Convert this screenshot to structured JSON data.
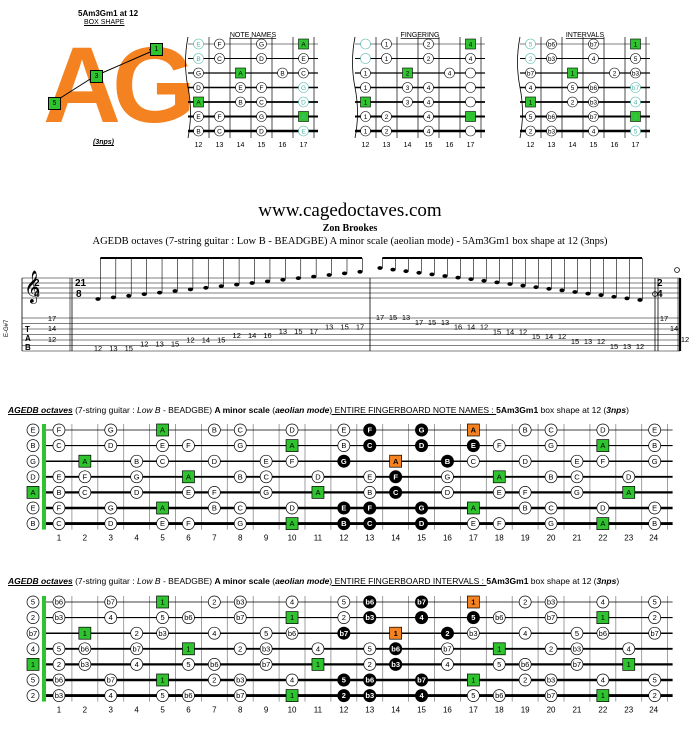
{
  "header": {
    "shape_title": "5Am3Gm1 at 12",
    "shape_subtitle": "BOX SHAPE",
    "logo_letters": "AG",
    "nps": "(3nps)",
    "logo_markers": [
      "1",
      "3",
      "5"
    ],
    "accent_orange": "#f58220",
    "accent_green": "#2fc42f"
  },
  "mini": {
    "fret_numbers": [
      "12",
      "13",
      "14",
      "15",
      "16",
      "17"
    ],
    "note_names": {
      "title": "NOTE NAMES",
      "rows": [
        [
          "E",
          "F",
          "",
          "G",
          "",
          "A"
        ],
        [
          "B",
          "C",
          "",
          "D",
          "",
          "E"
        ],
        [
          "G",
          "",
          "A",
          "",
          "B",
          "C"
        ],
        [
          "D",
          "",
          "E",
          "F",
          "",
          "G"
        ],
        [
          "A",
          "",
          "B",
          "C",
          "",
          "D"
        ],
        [
          "E",
          "F",
          "",
          "G",
          "",
          "A"
        ],
        [
          "B",
          "C",
          "",
          "D",
          "",
          "E"
        ]
      ]
    },
    "fingering": {
      "title": "FINGERING",
      "rows": [
        [
          "",
          "1",
          "",
          "2",
          "",
          "4"
        ],
        [
          "",
          "1",
          "",
          "2",
          "",
          "4"
        ],
        [
          "1",
          "",
          "2",
          "",
          "4",
          ""
        ],
        [
          "1",
          "",
          "3",
          "4",
          "",
          ""
        ],
        [
          "1",
          "",
          "3",
          "4",
          "",
          ""
        ],
        [
          "1",
          "2",
          "",
          "4",
          "",
          ""
        ],
        [
          "1",
          "2",
          "",
          "4",
          "",
          ""
        ]
      ]
    },
    "intervals": {
      "title": "INTERVALS",
      "rows": [
        [
          "5",
          "b6",
          "",
          "b7",
          "",
          "1"
        ],
        [
          "2",
          "b3",
          "",
          "4",
          "",
          "5"
        ],
        [
          "b7",
          "",
          "1",
          "",
          "2",
          "b3"
        ],
        [
          "4",
          "",
          "5",
          "b6",
          "",
          "b7"
        ],
        [
          "1",
          "",
          "2",
          "b3",
          "",
          "4"
        ],
        [
          "5",
          "b6",
          "",
          "b7",
          "",
          "1"
        ],
        [
          "2",
          "b3",
          "",
          "4",
          "",
          "5"
        ]
      ]
    }
  },
  "site": {
    "url": "www.cagedoctaves.com",
    "author": "Zon Brookes",
    "description": "AGEDB octaves (7-string guitar : Low B - BEADGBE) A minor scale (aeolian mode) - 5Am3Gm1 box shape at 12 (3nps)"
  },
  "tab": {
    "tuning": "E-G#7",
    "time_sig_top": "2",
    "time_sig_bottom": "4",
    "time_sig2_top": "21",
    "time_sig2_bottom": "8",
    "chord_frets": [
      "17",
      "14",
      "12"
    ],
    "asc_row": [
      "12",
      "13",
      "15",
      "12",
      "13",
      "15",
      "12",
      "14",
      "15",
      "12",
      "14",
      "16",
      "13",
      "15",
      "17",
      "13",
      "15",
      "17"
    ],
    "desc_row": [
      "17",
      "15",
      "13",
      "17",
      "15",
      "13",
      "16",
      "14",
      "12",
      "15",
      "14",
      "12",
      "15",
      "14",
      "12",
      "15",
      "13",
      "12",
      "15",
      "13",
      "12"
    ],
    "end_frets": [
      "17",
      "14",
      "12"
    ]
  },
  "board1": {
    "t1": "AGEDB octaves",
    "t2": " (7-string guitar : ",
    "t3": "Low B",
    "t4": " - BEADGBE) ",
    "t5": "A minor scale",
    "t6": " (",
    "t7": "aeolian mode",
    "t8": ") ENTIRE FINGERBOARD NOTE NAMES : ",
    "t9": "5Am3Gm1",
    "t10": " box shape at 12 (",
    "t11": "3nps",
    "t12": ")",
    "open": [
      "E",
      "B",
      "G",
      "D",
      "A",
      "E",
      "B"
    ],
    "rows": [
      [
        "F",
        "",
        "G",
        "",
        "A",
        "",
        "B",
        "C",
        "",
        "D",
        "",
        "E",
        "F",
        "",
        "G",
        "",
        "A",
        "",
        "B",
        "C",
        "",
        "D",
        "",
        "E"
      ],
      [
        "C",
        "",
        "D",
        "",
        "E",
        "F",
        "",
        "G",
        "",
        "A",
        "",
        "B",
        "C",
        "",
        "D",
        "",
        "E",
        "F",
        "",
        "G",
        "",
        "A",
        "",
        "B"
      ],
      [
        "",
        "A",
        "",
        "B",
        "C",
        "",
        "D",
        "",
        "E",
        "F",
        "",
        "G",
        "",
        "A",
        "",
        "B",
        "C",
        "",
        "D",
        "",
        "E",
        "F",
        "",
        "G"
      ],
      [
        "E",
        "F",
        "",
        "G",
        "",
        "A",
        "",
        "B",
        "C",
        "",
        "D",
        "",
        "E",
        "F",
        "",
        "G",
        "",
        "A",
        "",
        "B",
        "C",
        "",
        "D",
        ""
      ],
      [
        "B",
        "C",
        "",
        "D",
        "",
        "E",
        "F",
        "",
        "G",
        "",
        "A",
        "",
        "B",
        "C",
        "",
        "D",
        "",
        "E",
        "F",
        "",
        "G",
        "",
        "A",
        ""
      ],
      [
        "F",
        "",
        "G",
        "",
        "A",
        "",
        "B",
        "C",
        "",
        "D",
        "",
        "E",
        "F",
        "",
        "G",
        "",
        "A",
        "",
        "B",
        "C",
        "",
        "D",
        "",
        "E"
      ],
      [
        "C",
        "",
        "D",
        "",
        "E",
        "F",
        "",
        "G",
        "",
        "A",
        "",
        "B",
        "C",
        "",
        "D",
        "",
        "E",
        "F",
        "",
        "G",
        "",
        "A",
        "",
        "B"
      ]
    ],
    "fret_numbers": [
      "1",
      "2",
      "3",
      "4",
      "5",
      "6",
      "7",
      "8",
      "9",
      "10",
      "11",
      "12",
      "13",
      "14",
      "15",
      "16",
      "17",
      "18",
      "19",
      "20",
      "21",
      "22",
      "23",
      "24"
    ]
  },
  "board2": {
    "t1": "AGEDB octaves",
    "t2": " (7-string guitar : ",
    "t3": "Low B",
    "t4": " - BEADGBE) ",
    "t5": "A minor scale",
    "t6": " (",
    "t7": "aeolian mode",
    "t8": ") ENTIRE FINGERBOARD INTERVALS : ",
    "t9": "5Am3Gm1",
    "t10": " box shape at 12 (",
    "t11": "3nps",
    "t12": ")",
    "open": [
      "5",
      "2",
      "b7",
      "4",
      "1",
      "5",
      "2"
    ],
    "rows": [
      [
        "b6",
        "",
        "b7",
        "",
        "1",
        "",
        "2",
        "b3",
        "",
        "4",
        "",
        "5",
        "b6",
        "",
        "b7",
        "",
        "1",
        "",
        "2",
        "b3",
        "",
        "4",
        "",
        "5"
      ],
      [
        "b3",
        "",
        "4",
        "",
        "5",
        "b6",
        "",
        "b7",
        "",
        "1",
        "",
        "2",
        "b3",
        "",
        "4",
        "",
        "5",
        "b6",
        "",
        "b7",
        "",
        "1",
        "",
        "2"
      ],
      [
        "",
        "1",
        "",
        "2",
        "b3",
        "",
        "4",
        "",
        "5",
        "b6",
        "",
        "b7",
        "",
        "1",
        "",
        "2",
        "b3",
        "",
        "4",
        "",
        "5",
        "b6",
        "",
        "b7"
      ],
      [
        "5",
        "b6",
        "",
        "b7",
        "",
        "1",
        "",
        "2",
        "b3",
        "",
        "4",
        "",
        "5",
        "b6",
        "",
        "b7",
        "",
        "1",
        "",
        "2",
        "b3",
        "",
        "4",
        ""
      ],
      [
        "2",
        "b3",
        "",
        "4",
        "",
        "5",
        "b6",
        "",
        "b7",
        "",
        "1",
        "",
        "2",
        "b3",
        "",
        "4",
        "",
        "5",
        "b6",
        "",
        "b7",
        "",
        "1",
        ""
      ],
      [
        "b6",
        "",
        "b7",
        "",
        "1",
        "",
        "2",
        "b3",
        "",
        "4",
        "",
        "5",
        "b6",
        "",
        "b7",
        "",
        "1",
        "",
        "2",
        "b3",
        "",
        "4",
        "",
        "5"
      ],
      [
        "b3",
        "",
        "4",
        "",
        "5",
        "b6",
        "",
        "b7",
        "",
        "1",
        "",
        "2",
        "b3",
        "",
        "4",
        "",
        "5",
        "b6",
        "",
        "b7",
        "",
        "1",
        "",
        "2"
      ]
    ],
    "fret_numbers": [
      "1",
      "2",
      "3",
      "4",
      "5",
      "6",
      "7",
      "8",
      "9",
      "10",
      "11",
      "12",
      "13",
      "14",
      "15",
      "16",
      "17",
      "18",
      "19",
      "20",
      "21",
      "22",
      "23",
      "24"
    ]
  }
}
